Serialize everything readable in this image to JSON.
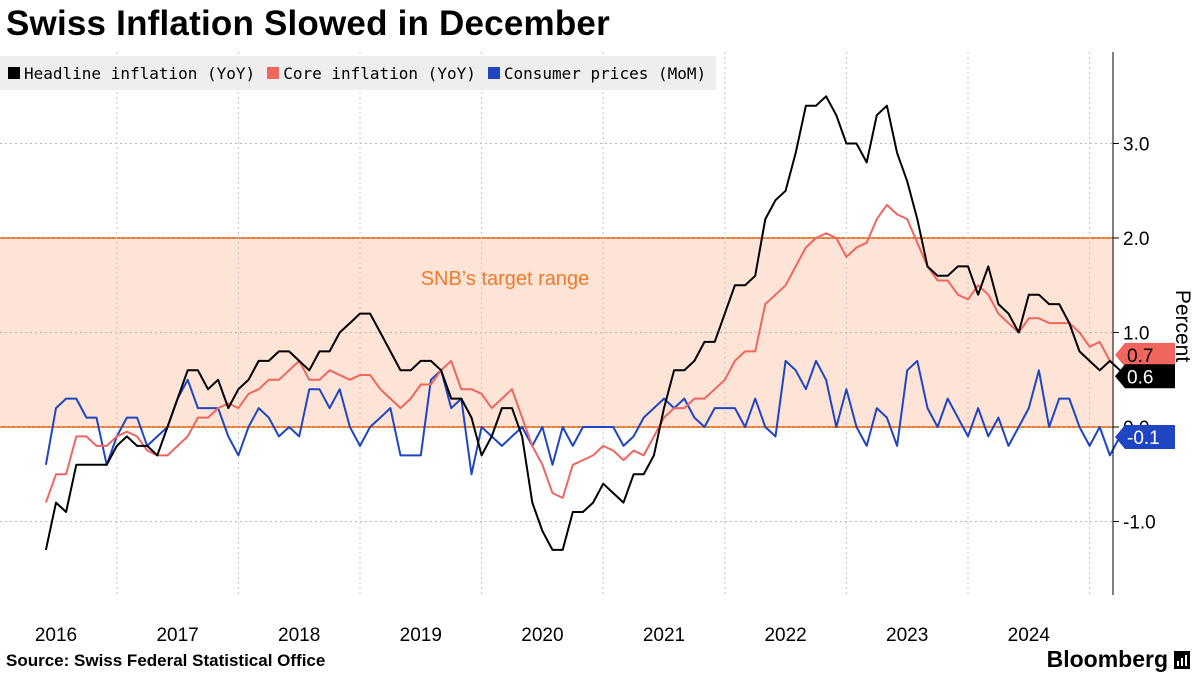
{
  "title": "Swiss Inflation Slowed in December",
  "legend": [
    {
      "label": "Headline inflation (YoY)",
      "color": "#000000"
    },
    {
      "label": "Core inflation (YoY)",
      "color": "#f0665f"
    },
    {
      "label": "Consumer prices (MoM)",
      "color": "#1f45c2"
    }
  ],
  "footer": {
    "source": "Source: Swiss Federal Statistical Office",
    "brand": "Bloomberg"
  },
  "chart_data": {
    "type": "line",
    "title": "Swiss Inflation Slowed in December",
    "ylabel": "Percent",
    "ylim": [
      -1.8,
      3.9
    ],
    "yticks": [
      -1.0,
      0.0,
      1.0,
      2.0,
      3.0
    ],
    "ytick_labels": [
      "-1.0",
      "0.0",
      "1.0",
      "2.0",
      "3.0"
    ],
    "x_start": "2015-12",
    "x_end": "2024-12",
    "xticks": [
      "2016",
      "2017",
      "2018",
      "2019",
      "2020",
      "2021",
      "2022",
      "2023",
      "2024"
    ],
    "target_band": {
      "low": 0.0,
      "high": 2.0,
      "label": "SNB’s target range",
      "color": "#f07a2a"
    },
    "series": [
      {
        "name": "Headline inflation (YoY)",
        "color": "#000000",
        "end_label": "0.6",
        "values": [
          -1.3,
          -0.8,
          -0.9,
          -0.4,
          -0.4,
          -0.4,
          -0.4,
          -0.2,
          -0.1,
          -0.2,
          -0.2,
          -0.3,
          0.0,
          0.3,
          0.6,
          0.6,
          0.4,
          0.5,
          0.2,
          0.4,
          0.5,
          0.7,
          0.7,
          0.8,
          0.8,
          0.7,
          0.6,
          0.8,
          0.8,
          1.0,
          1.1,
          1.2,
          1.2,
          1.0,
          0.8,
          0.6,
          0.6,
          0.7,
          0.7,
          0.6,
          0.3,
          0.3,
          0.1,
          -0.3,
          -0.1,
          0.2,
          0.2,
          -0.1,
          -0.8,
          -1.1,
          -1.3,
          -1.3,
          -0.9,
          -0.9,
          -0.8,
          -0.6,
          -0.7,
          -0.8,
          -0.5,
          -0.5,
          -0.3,
          0.2,
          0.6,
          0.6,
          0.7,
          0.9,
          0.9,
          1.2,
          1.5,
          1.5,
          1.6,
          2.2,
          2.4,
          2.5,
          2.9,
          3.4,
          3.4,
          3.5,
          3.3,
          3.0,
          3.0,
          2.8,
          3.3,
          3.4,
          2.9,
          2.6,
          2.2,
          1.7,
          1.6,
          1.6,
          1.7,
          1.7,
          1.4,
          1.7,
          1.3,
          1.2,
          1.0,
          1.4,
          1.4,
          1.3,
          1.3,
          1.1,
          0.8,
          0.7,
          0.6,
          0.7,
          0.6
        ]
      },
      {
        "name": "Core inflation (YoY)",
        "color": "#f0665f",
        "end_label": "0.7",
        "values": [
          -0.8,
          -0.5,
          -0.5,
          -0.1,
          -0.1,
          -0.2,
          -0.2,
          -0.1,
          -0.05,
          -0.1,
          -0.25,
          -0.3,
          -0.3,
          -0.2,
          -0.1,
          0.1,
          0.1,
          0.2,
          0.25,
          0.2,
          0.35,
          0.4,
          0.5,
          0.5,
          0.6,
          0.7,
          0.5,
          0.5,
          0.6,
          0.55,
          0.5,
          0.55,
          0.55,
          0.4,
          0.3,
          0.2,
          0.3,
          0.45,
          0.45,
          0.6,
          0.7,
          0.4,
          0.4,
          0.35,
          0.2,
          0.3,
          0.4,
          0.1,
          -0.2,
          -0.4,
          -0.7,
          -0.75,
          -0.4,
          -0.35,
          -0.3,
          -0.2,
          -0.25,
          -0.35,
          -0.25,
          -0.3,
          -0.1,
          0.1,
          0.2,
          0.2,
          0.3,
          0.3,
          0.4,
          0.5,
          0.7,
          0.8,
          0.8,
          1.3,
          1.4,
          1.5,
          1.7,
          1.9,
          2.0,
          2.05,
          2.0,
          1.8,
          1.9,
          1.95,
          2.2,
          2.35,
          2.25,
          2.2,
          1.95,
          1.7,
          1.55,
          1.55,
          1.4,
          1.35,
          1.5,
          1.4,
          1.2,
          1.1,
          1.0,
          1.15,
          1.15,
          1.1,
          1.1,
          1.1,
          1.0,
          0.85,
          0.9,
          0.7
        ]
      },
      {
        "name": "Consumer prices (MoM)",
        "color": "#1f45c2",
        "end_label": "-0.1",
        "values": [
          -0.4,
          0.2,
          0.3,
          0.3,
          0.1,
          0.1,
          -0.4,
          -0.1,
          0.1,
          0.1,
          -0.2,
          -0.1,
          0.0,
          0.3,
          0.5,
          0.2,
          0.2,
          0.2,
          -0.1,
          -0.3,
          0.0,
          0.2,
          0.1,
          -0.1,
          0.0,
          -0.1,
          0.4,
          0.4,
          0.2,
          0.4,
          0.0,
          -0.2,
          0.0,
          0.1,
          0.2,
          -0.3,
          -0.3,
          -0.3,
          0.5,
          0.6,
          0.2,
          0.3,
          -0.5,
          0.0,
          -0.1,
          -0.2,
          -0.1,
          0.0,
          -0.2,
          0.0,
          -0.4,
          0.0,
          -0.2,
          0.0,
          0.0,
          0.0,
          0.0,
          -0.2,
          -0.1,
          0.1,
          0.2,
          0.3,
          0.2,
          0.3,
          0.1,
          0.0,
          0.2,
          0.2,
          0.2,
          0.0,
          0.3,
          0.0,
          -0.1,
          0.7,
          0.6,
          0.4,
          0.7,
          0.5,
          0.0,
          0.4,
          0.0,
          -0.2,
          0.2,
          0.1,
          -0.2,
          0.6,
          0.7,
          0.2,
          0.0,
          0.3,
          0.1,
          -0.1,
          0.2,
          -0.1,
          0.1,
          -0.2,
          0.0,
          0.2,
          0.6,
          0.0,
          0.3,
          0.3,
          0.0,
          -0.2,
          0.0,
          -0.3,
          -0.1,
          -0.1,
          -0.1
        ]
      }
    ]
  }
}
